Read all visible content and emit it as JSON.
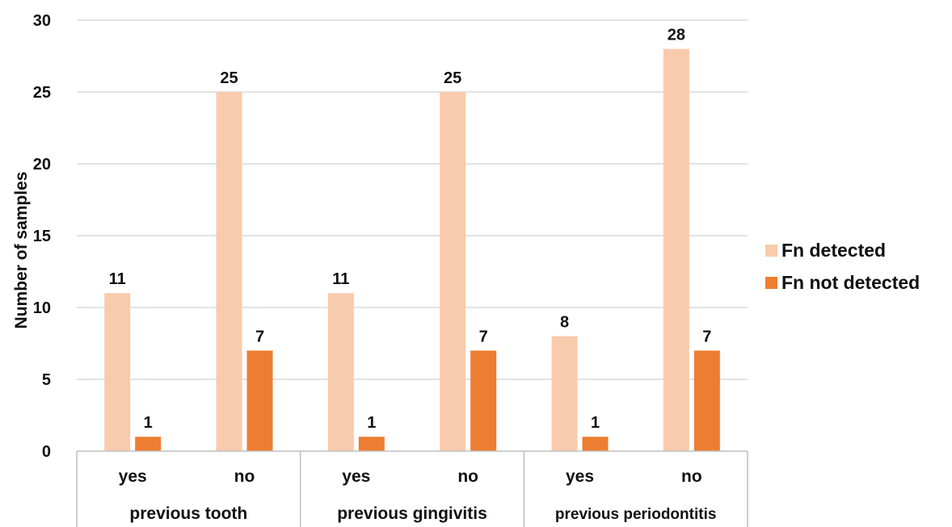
{
  "chart_data": {
    "type": "bar",
    "title": "",
    "ylabel": "Number of samples",
    "ylim": [
      0,
      30
    ],
    "yticks": [
      0,
      5,
      10,
      15,
      20,
      25,
      30
    ],
    "grid": true,
    "legend": "right",
    "groups": [
      {
        "label": "previous tooth",
        "categories": [
          "yes",
          "no"
        ]
      },
      {
        "label": "previous gingivitis",
        "categories": [
          "yes",
          "no"
        ]
      },
      {
        "label": "previous periodontitis",
        "categories": [
          "yes",
          "no"
        ]
      }
    ],
    "categories": [
      "yes",
      "no",
      "yes",
      "no",
      "yes",
      "no"
    ],
    "series": [
      {
        "name": "Fn detected",
        "color": "#F8CBAD",
        "values": [
          11,
          25,
          11,
          25,
          8,
          28
        ]
      },
      {
        "name": "Fn not detected",
        "color": "#ED7D31",
        "values": [
          1,
          7,
          1,
          7,
          1,
          7
        ]
      }
    ]
  }
}
